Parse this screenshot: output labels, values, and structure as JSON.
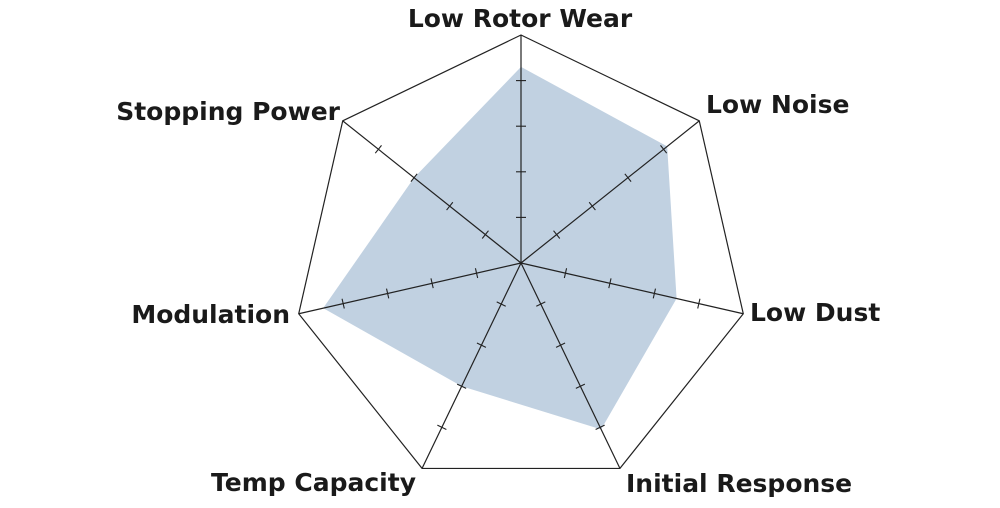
{
  "chart_data": {
    "type": "radar",
    "title": "",
    "axes": [
      "Low Rotor Wear",
      "Low Noise",
      "Low Dust",
      "Initial Response",
      "Temp Capacity",
      "Modulation",
      "Stopping Power"
    ],
    "range": [
      0,
      10
    ],
    "tick_step": 2,
    "tick_labels_shown": false,
    "grid": "outer polygon only",
    "series": [
      {
        "values": [
          8.6,
          8.2,
          7.0,
          8.1,
          6.0,
          8.9,
          6.0
        ],
        "color": "#c1d1e1"
      }
    ],
    "colors": {
      "axis": "#222222",
      "fill": "#c1d1e1",
      "label": "#1a1a1a"
    }
  }
}
